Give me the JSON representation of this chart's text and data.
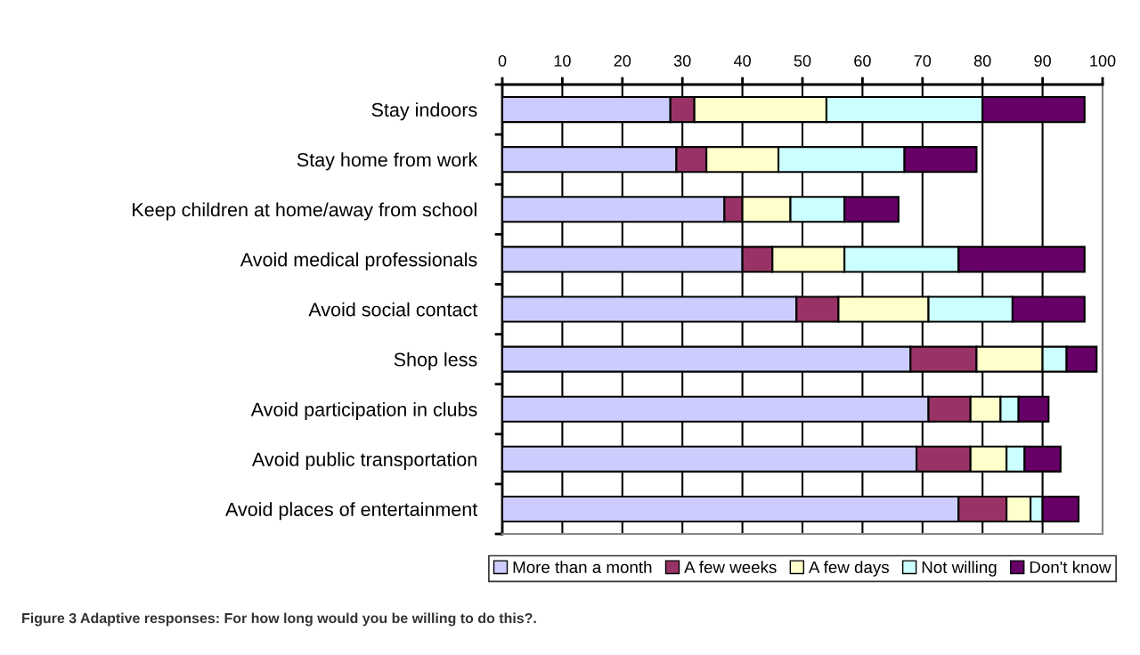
{
  "chart_data": {
    "type": "bar",
    "orientation": "horizontal",
    "stacked": true,
    "categories": [
      "Stay indoors",
      "Stay home from work",
      "Keep children at home/away from school",
      "Avoid medical professionals",
      "Avoid social contact",
      "Shop less",
      "Avoid participation in clubs",
      "Avoid public transportation",
      "Avoid places of entertainment"
    ],
    "series": [
      {
        "name": "More than a month",
        "color": "#ccccff",
        "values": [
          28,
          29,
          37,
          40,
          49,
          68,
          71,
          69,
          76
        ]
      },
      {
        "name": "A few weeks",
        "color": "#993366",
        "values": [
          4,
          5,
          3,
          5,
          7,
          11,
          7,
          9,
          8
        ]
      },
      {
        "name": "A few days",
        "color": "#ffffcc",
        "values": [
          22,
          12,
          8,
          12,
          15,
          11,
          5,
          6,
          4
        ]
      },
      {
        "name": "Not willing",
        "color": "#ccffff",
        "values": [
          26,
          21,
          9,
          19,
          14,
          4,
          3,
          3,
          2
        ]
      },
      {
        "name": "Don't know",
        "color": "#660066",
        "values": [
          17,
          12,
          9,
          21,
          12,
          5,
          5,
          6,
          6
        ]
      }
    ],
    "xlim": [
      0,
      100
    ],
    "xticks": [
      0,
      10,
      20,
      30,
      40,
      50,
      60,
      70,
      80,
      90,
      100
    ],
    "grid": "x",
    "legend": "bottom",
    "annotations": [
      "Figure 3 Adaptive responses: For how long would you be willing to do this?."
    ]
  }
}
